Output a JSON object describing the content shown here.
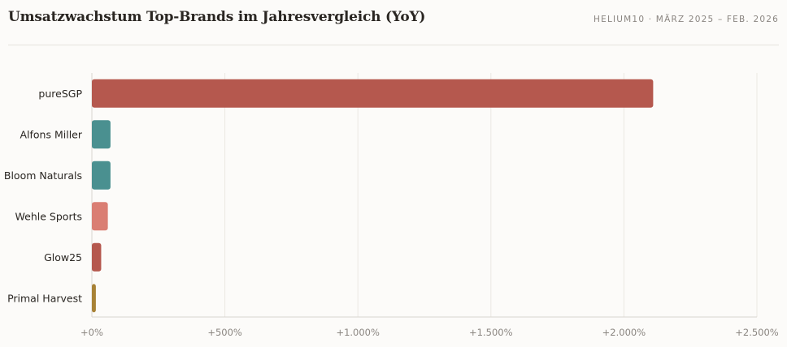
{
  "header": {
    "title": "Umsatzwachstum Top-Brands im Jahresvergleich (YoY)",
    "subtitle": "HELIUM10 · MÄRZ 2025 – FEB. 2026"
  },
  "chart_data": {
    "type": "bar",
    "orientation": "horizontal",
    "title": "Umsatzwachstum Top-Brands im Jahresvergleich (YoY)",
    "subtitle": "HELIUM10 · MÄRZ 2025 – FEB. 2026",
    "categories": [
      "pureSGP",
      "Alfons Miller",
      "Bloom Naturals",
      "Wehle Sports",
      "Glow25",
      "Primal Harvest"
    ],
    "values": [
      2110,
      70,
      70,
      60,
      35,
      15
    ],
    "colors": [
      "#b5584e",
      "#4a9090",
      "#4a9090",
      "#da7e73",
      "#b5584e",
      "#a88236"
    ],
    "xlim": [
      0,
      2500
    ],
    "xticks": [
      0,
      500,
      1000,
      1500,
      2000,
      2500
    ],
    "xtick_labels": [
      "+0%",
      "+500%",
      "+1.000%",
      "+1.500%",
      "+2.000%",
      "+2.500%"
    ],
    "xlabel": "",
    "ylabel": "",
    "grid": true
  }
}
